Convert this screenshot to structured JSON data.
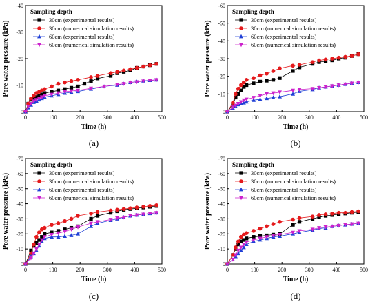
{
  "chart_data": [
    {
      "type": "line",
      "panel_label": "(a)",
      "xlabel": "Time (h)",
      "ylabel": "Pore water pressure (kPa)",
      "xlim": [
        0,
        500
      ],
      "ylim": [
        -40,
        0
      ],
      "xticks": [
        "0",
        "100",
        "200",
        "300",
        "400",
        "500"
      ],
      "yticks": [
        "0",
        "-10",
        "-20",
        "-30",
        "-40"
      ],
      "legend_title": "Sampling depth",
      "legend_position": "top-left",
      "series": [
        {
          "name": "30cm (experimental results)",
          "color": "#000000",
          "marker": "square",
          "x": [
            0,
            10,
            20,
            30,
            40,
            50,
            60,
            70,
            96,
            120,
            144,
            168,
            192,
            216,
            240,
            264,
            312,
            336,
            360,
            384,
            408,
            432,
            456,
            480
          ],
          "y": [
            0,
            -3,
            -4.5,
            -5,
            -5.5,
            -6,
            -6.5,
            -7,
            -7.5,
            -8,
            -8.5,
            -9,
            -9.5,
            -10.5,
            -11.5,
            -12.5,
            -13.5,
            -14.5,
            -15,
            -15.5,
            -16.5,
            -17,
            -17.5,
            -18
          ]
        },
        {
          "name": "30cm (numerical simulation results)",
          "color": "#e41a1c",
          "marker": "circle",
          "x": [
            0,
            10,
            20,
            30,
            40,
            50,
            60,
            70,
            96,
            120,
            144,
            168,
            192,
            240,
            264,
            312,
            336,
            360,
            384,
            408,
            432,
            456,
            480
          ],
          "y": [
            0,
            -3,
            -5,
            -6,
            -7,
            -7.5,
            -8,
            -8.5,
            -9.5,
            -10.5,
            -11,
            -11.5,
            -12,
            -13,
            -13.5,
            -14.5,
            -15,
            -15.5,
            -16,
            -16.5,
            -17,
            -17.5,
            -18
          ]
        },
        {
          "name": "60cm (experimental results)",
          "color": "#1f3fd6",
          "marker": "triangle-up",
          "x": [
            0,
            10,
            20,
            30,
            40,
            50,
            60,
            70,
            96,
            120,
            144,
            168,
            192,
            240,
            288,
            336,
            360,
            384,
            408,
            432,
            456,
            480
          ],
          "y": [
            0,
            -1.5,
            -2.5,
            -3.5,
            -4,
            -4.5,
            -5,
            -5.5,
            -6,
            -6.5,
            -7,
            -7.3,
            -7.6,
            -8.5,
            -9.5,
            -10,
            -10.5,
            -11,
            -11.3,
            -11.6,
            -11.8,
            -12
          ]
        },
        {
          "name": "60cm (numerical simulation results)",
          "color": "#cc22cc",
          "marker": "triangle-down",
          "x": [
            0,
            10,
            20,
            30,
            40,
            50,
            60,
            70,
            96,
            120,
            144,
            168,
            192,
            240,
            288,
            336,
            360,
            384,
            408,
            432,
            456,
            480
          ],
          "y": [
            0,
            -2,
            -3,
            -4,
            -4.5,
            -5,
            -5.5,
            -6,
            -6.5,
            -7,
            -7.5,
            -7.8,
            -8,
            -8.8,
            -9.5,
            -10.2,
            -10.5,
            -11,
            -11.2,
            -11.5,
            -11.7,
            -12
          ]
        }
      ]
    },
    {
      "type": "line",
      "panel_label": "(b)",
      "xlabel": "Time (h)",
      "ylabel": "Pore water pressure (kPa)",
      "xlim": [
        0,
        500
      ],
      "ylim": [
        -60,
        0
      ],
      "xticks": [
        "0",
        "100",
        "200",
        "300",
        "400",
        "500"
      ],
      "yticks": [
        "0",
        "-10",
        "-20",
        "-30",
        "-40",
        "-50",
        "-60"
      ],
      "legend_title": "Sampling depth",
      "legend_position": "top-left",
      "series": [
        {
          "name": "30cm (experimental results)",
          "color": "#000000",
          "marker": "square",
          "x": [
            0,
            20,
            30,
            40,
            50,
            60,
            70,
            96,
            120,
            144,
            168,
            192,
            240,
            264,
            312,
            336,
            360,
            384,
            408,
            432,
            456,
            480
          ],
          "y": [
            0,
            -4,
            -8,
            -10,
            -12,
            -14,
            -15,
            -16,
            -17,
            -17.5,
            -18,
            -19,
            -23,
            -25,
            -27,
            -28,
            -28.5,
            -29,
            -30,
            -30.5,
            -31.5,
            -32.5
          ]
        },
        {
          "name": "30cm (numerical simulation results)",
          "color": "#e41a1c",
          "marker": "circle",
          "x": [
            0,
            20,
            30,
            40,
            50,
            60,
            70,
            96,
            120,
            144,
            168,
            192,
            240,
            264,
            312,
            336,
            360,
            384,
            408,
            432,
            456,
            480
          ],
          "y": [
            0,
            -5,
            -10,
            -13,
            -15,
            -16.5,
            -18,
            -19,
            -20.5,
            -21.5,
            -23,
            -24.5,
            -26,
            -26.5,
            -28,
            -29,
            -29.5,
            -30,
            -30.5,
            -31,
            -31.5,
            -32.5
          ]
        },
        {
          "name": "60cm (experimental results)",
          "color": "#1f3fd6",
          "marker": "triangle-up",
          "x": [
            0,
            20,
            30,
            40,
            50,
            60,
            70,
            96,
            120,
            144,
            168,
            192,
            240,
            264,
            312,
            336,
            360,
            384,
            408,
            432,
            456,
            480
          ],
          "y": [
            0,
            -2,
            -3,
            -4,
            -4.5,
            -5,
            -5.5,
            -6.5,
            -7,
            -7.5,
            -8,
            -8.5,
            -10,
            -11.5,
            -12.5,
            -13.5,
            -14,
            -14.5,
            -15,
            -15.5,
            -16,
            -16.5
          ]
        },
        {
          "name": "60cm (numerical simulation results)",
          "color": "#cc22cc",
          "marker": "triangle-down",
          "x": [
            0,
            20,
            30,
            40,
            50,
            60,
            70,
            96,
            120,
            144,
            168,
            192,
            240,
            264,
            312,
            336,
            360,
            384,
            408,
            432,
            456,
            480
          ],
          "y": [
            0,
            -2.5,
            -3.5,
            -4.5,
            -5.5,
            -6.5,
            -7,
            -8,
            -9,
            -10,
            -10.5,
            -11,
            -12,
            -12.5,
            -13,
            -13.5,
            -14,
            -14.5,
            -15,
            -15.5,
            -16,
            -16.5
          ]
        }
      ]
    },
    {
      "type": "line",
      "panel_label": "(c)",
      "xlabel": "Time (h)",
      "ylabel": "Pore water pressure (kPa)",
      "xlim": [
        0,
        500
      ],
      "ylim": [
        -70,
        0
      ],
      "xticks": [
        "0",
        "100",
        "200",
        "300",
        "400",
        "500"
      ],
      "yticks": [
        "0",
        "-10",
        "-20",
        "-30",
        "-40",
        "-50",
        "-60",
        "-70"
      ],
      "legend_title": "Sampling depth",
      "legend_position": "top-left",
      "series": [
        {
          "name": "30cm (experimental results)",
          "color": "#000000",
          "marker": "square",
          "x": [
            0,
            20,
            30,
            40,
            50,
            60,
            70,
            96,
            120,
            144,
            168,
            192,
            240,
            264,
            312,
            336,
            360,
            384,
            408,
            432,
            456,
            480
          ],
          "y": [
            0,
            -9,
            -12,
            -14,
            -16,
            -18,
            -20,
            -21,
            -22,
            -23,
            -24,
            -25,
            -30,
            -32,
            -34,
            -35,
            -36,
            -36.5,
            -37,
            -37.5,
            -38,
            -38.5
          ]
        },
        {
          "name": "30cm (numerical simulation results)",
          "color": "#e41a1c",
          "marker": "circle",
          "x": [
            0,
            20,
            30,
            40,
            50,
            60,
            70,
            96,
            120,
            144,
            168,
            192,
            240,
            264,
            312,
            336,
            360,
            384,
            408,
            432,
            456,
            480
          ],
          "y": [
            0,
            -7,
            -13,
            -18,
            -21,
            -23,
            -24,
            -26,
            -27,
            -28.5,
            -30,
            -32,
            -33.5,
            -34.5,
            -35.5,
            -36,
            -36.5,
            -37,
            -37.5,
            -38,
            -38.5,
            -39
          ]
        },
        {
          "name": "60cm (experimental results)",
          "color": "#1f3fd6",
          "marker": "triangle-up",
          "x": [
            0,
            20,
            30,
            40,
            50,
            60,
            70,
            96,
            120,
            144,
            168,
            192,
            240,
            264,
            312,
            336,
            360,
            384,
            408,
            432,
            456,
            480
          ],
          "y": [
            0,
            -5,
            -7,
            -9,
            -12,
            -15,
            -17,
            -18,
            -18,
            -18.5,
            -19,
            -20,
            -25,
            -27,
            -29,
            -30,
            -31,
            -32,
            -32.5,
            -33,
            -33.5,
            -34
          ]
        },
        {
          "name": "60cm (numerical simulation results)",
          "color": "#cc22cc",
          "marker": "triangle-down",
          "x": [
            0,
            20,
            30,
            40,
            50,
            60,
            70,
            96,
            120,
            144,
            168,
            192,
            240,
            264,
            312,
            336,
            360,
            384,
            408,
            432,
            456,
            480
          ],
          "y": [
            0,
            -4,
            -7,
            -10,
            -13,
            -16,
            -18,
            -19.5,
            -20.5,
            -21.5,
            -23,
            -24.5,
            -27,
            -28,
            -29.5,
            -30.5,
            -31,
            -32,
            -32.5,
            -33,
            -33.5,
            -34
          ]
        }
      ]
    },
    {
      "type": "line",
      "panel_label": "(d)",
      "xlabel": "Time (h)",
      "ylabel": "Pore water pressure (kPa)",
      "xlim": [
        0,
        500
      ],
      "ylim": [
        -70,
        0
      ],
      "xticks": [
        "0",
        "100",
        "200",
        "300",
        "400",
        "500"
      ],
      "yticks": [
        "0",
        "-10",
        "-20",
        "-30",
        "-40",
        "-50",
        "-60",
        "-70"
      ],
      "legend_title": "Sampling depth",
      "legend_position": "top-left",
      "series": [
        {
          "name": "30cm (experimental results)",
          "color": "#000000",
          "marker": "square",
          "x": [
            0,
            20,
            30,
            40,
            50,
            60,
            70,
            96,
            120,
            144,
            168,
            192,
            240,
            264,
            312,
            336,
            360,
            384,
            408,
            432,
            456,
            480
          ],
          "y": [
            0,
            -6,
            -10,
            -13,
            -15,
            -16,
            -17,
            -18,
            -18.5,
            -19,
            -19.5,
            -20,
            -26,
            -28,
            -30,
            -31,
            -32,
            -32.5,
            -33,
            -33.5,
            -34,
            -34.5
          ]
        },
        {
          "name": "30cm (numerical simulation results)",
          "color": "#e41a1c",
          "marker": "circle",
          "x": [
            0,
            20,
            30,
            40,
            50,
            60,
            70,
            96,
            120,
            144,
            168,
            192,
            240,
            264,
            312,
            336,
            360,
            384,
            408,
            432,
            456,
            480
          ],
          "y": [
            0,
            -6,
            -11,
            -15,
            -18,
            -19.5,
            -20.5,
            -22,
            -23.5,
            -25,
            -26.5,
            -28,
            -29.5,
            -30.5,
            -31.5,
            -32.5,
            -33,
            -33.5,
            -34,
            -34,
            -34.5,
            -35
          ]
        },
        {
          "name": "60cm (experimental results)",
          "color": "#1f3fd6",
          "marker": "triangle-up",
          "x": [
            0,
            20,
            30,
            40,
            50,
            60,
            70,
            96,
            120,
            144,
            168,
            192,
            240,
            264,
            312,
            336,
            360,
            384,
            408,
            432,
            456,
            480
          ],
          "y": [
            0,
            -3,
            -5,
            -7,
            -9,
            -11,
            -13,
            -15,
            -16,
            -17,
            -18,
            -18.5,
            -20,
            -21,
            -22.5,
            -23.5,
            -24,
            -25,
            -25.5,
            -26,
            -26.5,
            -27
          ]
        },
        {
          "name": "60cm (numerical simulation results)",
          "color": "#cc22cc",
          "marker": "triangle-down",
          "x": [
            0,
            20,
            30,
            40,
            50,
            60,
            70,
            96,
            120,
            144,
            168,
            192,
            240,
            264,
            312,
            336,
            360,
            384,
            408,
            432,
            456,
            480
          ],
          "y": [
            0,
            -3,
            -6,
            -9,
            -11,
            -13,
            -14.5,
            -16,
            -17,
            -18,
            -19,
            -19.5,
            -21,
            -22,
            -23,
            -24,
            -24.5,
            -25,
            -25.5,
            -26,
            -26.5,
            -27
          ]
        }
      ]
    }
  ]
}
